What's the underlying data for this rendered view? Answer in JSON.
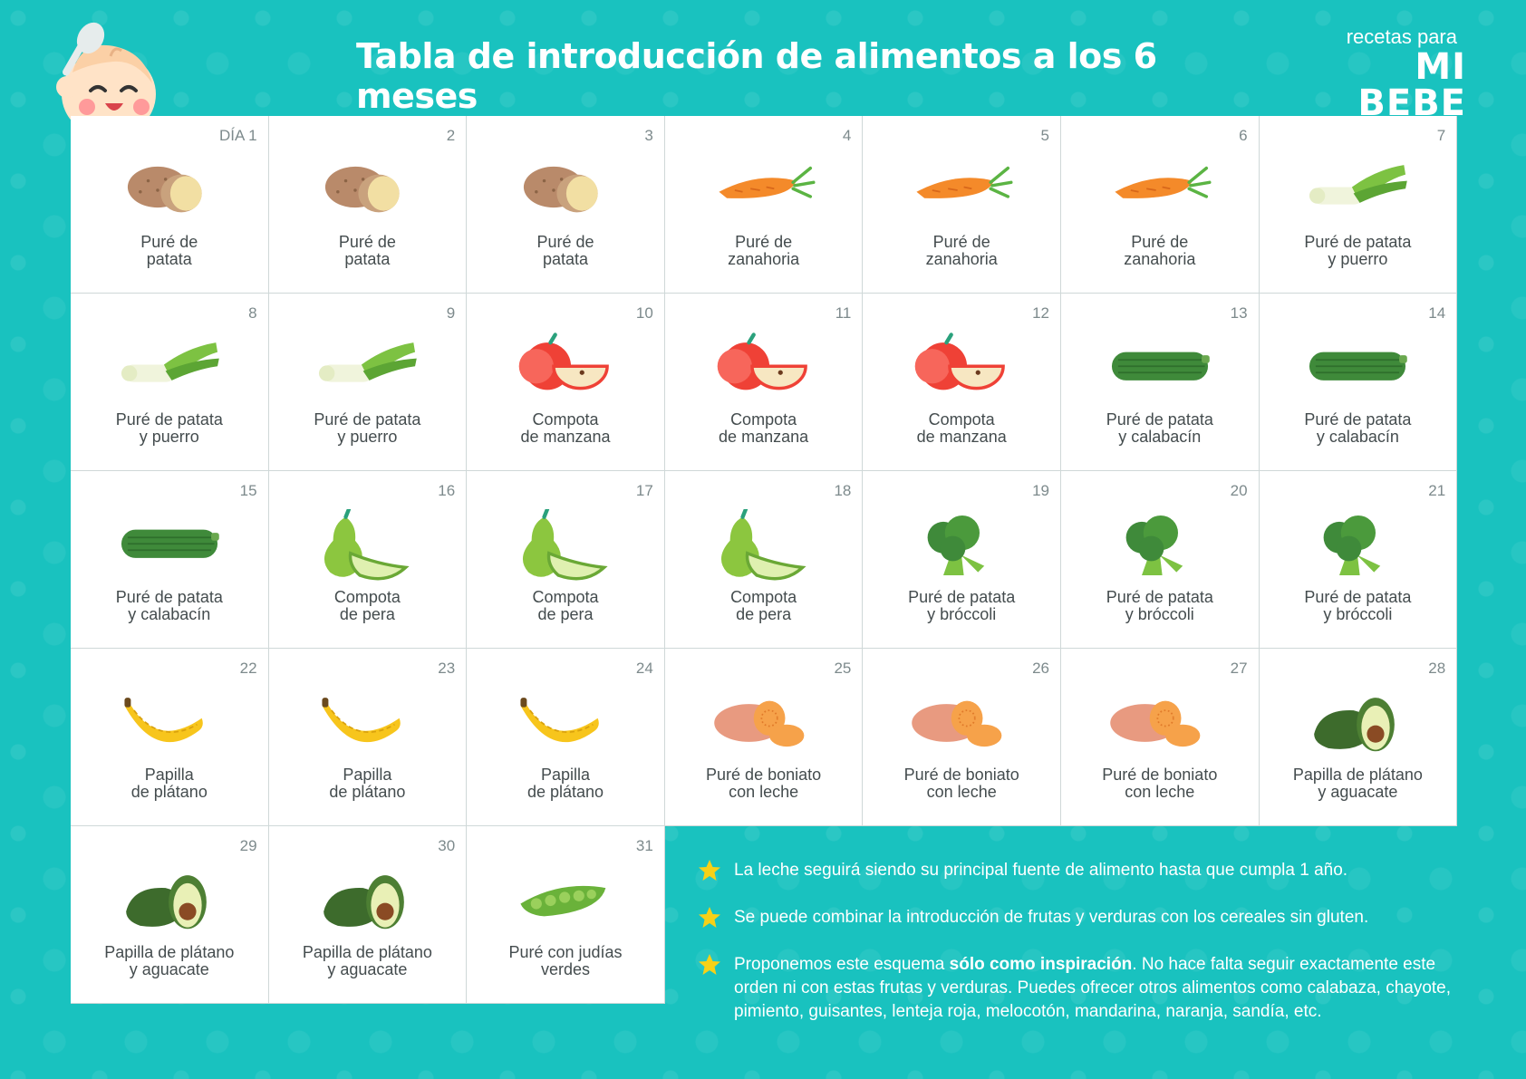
{
  "header": {
    "title": "Tabla de introducción de alimentos a los 6 meses",
    "logo_top": "recetas para",
    "logo_main": "MI BEBE"
  },
  "days": [
    {
      "num": "DÍA 1",
      "food": "potato",
      "l1": "Puré de",
      "l2": "patata"
    },
    {
      "num": "2",
      "food": "potato",
      "l1": "Puré de",
      "l2": "patata"
    },
    {
      "num": "3",
      "food": "potato",
      "l1": "Puré de",
      "l2": "patata"
    },
    {
      "num": "4",
      "food": "carrot",
      "l1": "Puré de",
      "l2": "zanahoria"
    },
    {
      "num": "5",
      "food": "carrot",
      "l1": "Puré de",
      "l2": "zanahoria"
    },
    {
      "num": "6",
      "food": "carrot",
      "l1": "Puré de",
      "l2": "zanahoria"
    },
    {
      "num": "7",
      "food": "leek",
      "l1": "Puré de patata",
      "l2": "y puerro"
    },
    {
      "num": "8",
      "food": "leek",
      "l1": "Puré de patata",
      "l2": "y puerro"
    },
    {
      "num": "9",
      "food": "leek",
      "l1": "Puré de patata",
      "l2": "y puerro"
    },
    {
      "num": "10",
      "food": "apple",
      "l1": "Compota",
      "l2": "de manzana"
    },
    {
      "num": "11",
      "food": "apple",
      "l1": "Compota",
      "l2": "de manzana"
    },
    {
      "num": "12",
      "food": "apple",
      "l1": "Compota",
      "l2": "de manzana"
    },
    {
      "num": "13",
      "food": "zucchini",
      "l1": "Puré de patata",
      "l2": "y calabacín"
    },
    {
      "num": "14",
      "food": "zucchini",
      "l1": "Puré de patata",
      "l2": "y calabacín"
    },
    {
      "num": "15",
      "food": "zucchini",
      "l1": "Puré de patata",
      "l2": "y calabacín"
    },
    {
      "num": "16",
      "food": "pear",
      "l1": "Compota",
      "l2": "de pera"
    },
    {
      "num": "17",
      "food": "pear",
      "l1": "Compota",
      "l2": "de pera"
    },
    {
      "num": "18",
      "food": "pear",
      "l1": "Compota",
      "l2": "de pera"
    },
    {
      "num": "19",
      "food": "broccoli",
      "l1": "Puré de patata",
      "l2": "y bróccoli"
    },
    {
      "num": "20",
      "food": "broccoli",
      "l1": "Puré de patata",
      "l2": "y bróccoli"
    },
    {
      "num": "21",
      "food": "broccoli",
      "l1": "Puré de patata",
      "l2": "y bróccoli"
    },
    {
      "num": "22",
      "food": "banana",
      "l1": "Papilla",
      "l2": "de plátano"
    },
    {
      "num": "23",
      "food": "banana",
      "l1": "Papilla",
      "l2": "de plátano"
    },
    {
      "num": "24",
      "food": "banana",
      "l1": "Papilla",
      "l2": "de plátano"
    },
    {
      "num": "25",
      "food": "sweetpotato",
      "l1": "Puré de boniato",
      "l2": "con leche"
    },
    {
      "num": "26",
      "food": "sweetpotato",
      "l1": "Puré de boniato",
      "l2": "con leche"
    },
    {
      "num": "27",
      "food": "sweetpotato",
      "l1": "Puré de boniato",
      "l2": "con leche"
    },
    {
      "num": "28",
      "food": "avocado",
      "l1": "Papilla de plátano",
      "l2": "y aguacate"
    },
    {
      "num": "29",
      "food": "avocado",
      "l1": "Papilla de plátano",
      "l2": "y aguacate"
    },
    {
      "num": "30",
      "food": "avocado",
      "l1": "Papilla de plátano",
      "l2": "y aguacate"
    },
    {
      "num": "31",
      "food": "peas",
      "l1": "Puré con judías",
      "l2": "verdes"
    }
  ],
  "notes": {
    "n1": "La leche seguirá siendo su principal fuente de alimento hasta que cumpla 1 año.",
    "n2": "Se puede combinar la introducción de frutas y verduras con los cereales sin gluten.",
    "n3_pre": "Proponemos este esquema ",
    "n3_bold": "sólo como inspiración",
    "n3_post": ". No hace falta seguir exactamente este orden ni con estas frutas y verduras. Puedes ofrecer otros alimentos como calabaza, chayote, pimiento, guisantes, lenteja roja, melocotón, mandarina, naranja, sandía, etc."
  },
  "colors": {
    "background": "#19c2bf",
    "card": "#ffffff",
    "text": "#444c4e",
    "daynum": "#7d8a8c",
    "star": "#f7d117"
  }
}
